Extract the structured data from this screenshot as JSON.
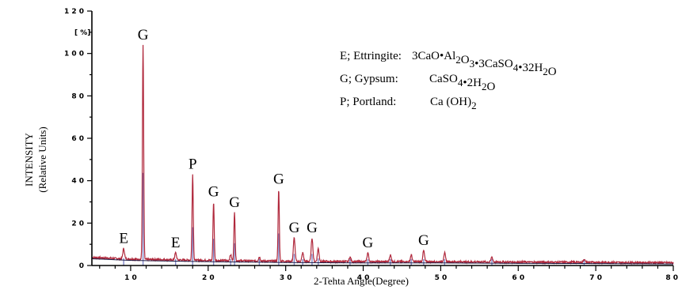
{
  "chart_data": {
    "type": "line",
    "xlabel": "2-Tehta Angle(Degree)",
    "ylabel_line1": "INTENSITY",
    "ylabel_line2": "(Relative Units)",
    "yunit": "[ %]",
    "xlim": [
      5,
      80
    ],
    "ylim": [
      0,
      120
    ],
    "x_ticks": [
      10,
      20,
      30,
      40,
      50,
      60,
      70,
      80
    ],
    "x_tick_labels": [
      "1 0",
      "2 0",
      "3 0",
      "4 0",
      "5 0",
      "6 0",
      "7 0",
      "8 0"
    ],
    "y_ticks": [
      0,
      20,
      40,
      60,
      80,
      100,
      120
    ],
    "y_tick_labels": [
      "0",
      "2 0",
      "4 0",
      "6 0",
      "8 0",
      "1 0 0",
      "1 2 0"
    ],
    "baseline": [
      [
        5,
        3.8
      ],
      [
        10,
        3.0
      ],
      [
        20,
        2.4
      ],
      [
        30,
        2.0
      ],
      [
        40,
        1.8
      ],
      [
        50,
        1.8
      ],
      [
        60,
        1.6
      ],
      [
        70,
        1.5
      ],
      [
        80,
        1.3
      ]
    ],
    "peaks": [
      {
        "x": 9.1,
        "y": 8,
        "label": "E"
      },
      {
        "x": 11.6,
        "y": 104,
        "label": "G"
      },
      {
        "x": 15.8,
        "y": 6,
        "label": "E"
      },
      {
        "x": 18.0,
        "y": 43,
        "label": "P"
      },
      {
        "x": 20.7,
        "y": 30,
        "label": "G"
      },
      {
        "x": 23.4,
        "y": 25,
        "label": "G"
      },
      {
        "x": 29.1,
        "y": 36,
        "label": "G"
      },
      {
        "x": 31.1,
        "y": 13,
        "label": "G"
      },
      {
        "x": 33.4,
        "y": 13,
        "label": "G"
      },
      {
        "x": 40.6,
        "y": 6,
        "label": "G"
      },
      {
        "x": 47.8,
        "y": 7,
        "label": "G"
      },
      {
        "x": 50.5,
        "y": 6,
        "label": ""
      },
      {
        "x": 56.6,
        "y": 4,
        "label": ""
      },
      {
        "x": 34.2,
        "y": 8,
        "label": ""
      },
      {
        "x": 32.2,
        "y": 6,
        "label": ""
      },
      {
        "x": 38.3,
        "y": 4,
        "label": ""
      },
      {
        "x": 43.5,
        "y": 5,
        "label": ""
      },
      {
        "x": 46.2,
        "y": 5,
        "label": ""
      },
      {
        "x": 26.6,
        "y": 4,
        "label": ""
      },
      {
        "x": 22.9,
        "y": 5,
        "label": ""
      },
      {
        "x": 68.5,
        "y": 3,
        "label": ""
      }
    ],
    "legend": [
      {
        "prefix": "E; Ettringite:",
        "formula": [
          [
            "3CaO•Al",
            ""
          ],
          [
            "2",
            "sub"
          ],
          [
            "O",
            ""
          ],
          [
            "3",
            "sub"
          ],
          [
            "•3CaSO",
            ""
          ],
          [
            "4",
            "sub"
          ],
          [
            "•32H",
            ""
          ],
          [
            "2",
            "sub"
          ],
          [
            "O",
            ""
          ]
        ]
      },
      {
        "prefix": "G; Gypsum:",
        "formula": [
          [
            "CaSO",
            ""
          ],
          [
            "4",
            "sub"
          ],
          [
            "•2H",
            ""
          ],
          [
            "2",
            "sub"
          ],
          [
            "O",
            ""
          ]
        ]
      },
      {
        "prefix": "P; Portland:",
        "formula": [
          [
            "Ca (OH)",
            ""
          ],
          [
            "2",
            "sub"
          ]
        ]
      }
    ],
    "colors": {
      "pattern": "#b0283c",
      "sticks": "#7f86c8",
      "axes": "#000000",
      "baseline": "#1e1e46"
    },
    "grid": false
  }
}
